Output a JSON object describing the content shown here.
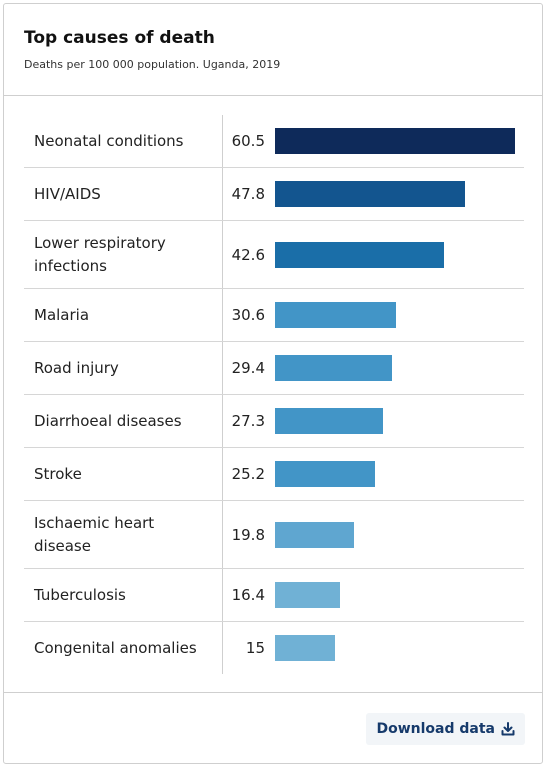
{
  "header": {
    "title": "Top causes of death",
    "subtitle": "Deaths per 100 000 population. Uganda, 2019"
  },
  "footer": {
    "download_label": "Download data"
  },
  "icons": {
    "download": "download-icon"
  },
  "colors": {
    "rank1": "#0e2a5a",
    "rank2": "#13558f",
    "rank3": "#1a6ea8",
    "mid": "#4295c7",
    "light1": "#5fa6d0",
    "light2": "#70b1d5"
  },
  "chart_data": {
    "type": "bar",
    "orientation": "horizontal",
    "title": "Top causes of death",
    "subtitle": "Deaths per 100 000 population. Uganda, 2019",
    "categories": [
      "Neonatal conditions",
      "HIV/AIDS",
      "Lower respiratory infections",
      "Malaria",
      "Road injury",
      "Diarrhoeal diseases",
      "Stroke",
      "Ischaemic heart disease",
      "Tuberculosis",
      "Congenital anomalies"
    ],
    "values": [
      60.5,
      47.8,
      42.6,
      30.6,
      29.4,
      27.3,
      25.2,
      19.8,
      16.4,
      15
    ],
    "value_labels": [
      "60.5",
      "47.8",
      "42.6",
      "30.6",
      "29.4",
      "27.3",
      "25.2",
      "19.8",
      "16.4",
      "15"
    ],
    "xlim": [
      0,
      60.5
    ],
    "grid": false,
    "bar_colors": [
      "#0e2a5a",
      "#13558f",
      "#1a6ea8",
      "#4295c7",
      "#4295c7",
      "#4295c7",
      "#4295c7",
      "#5fa6d0",
      "#70b1d5",
      "#70b1d5"
    ]
  }
}
